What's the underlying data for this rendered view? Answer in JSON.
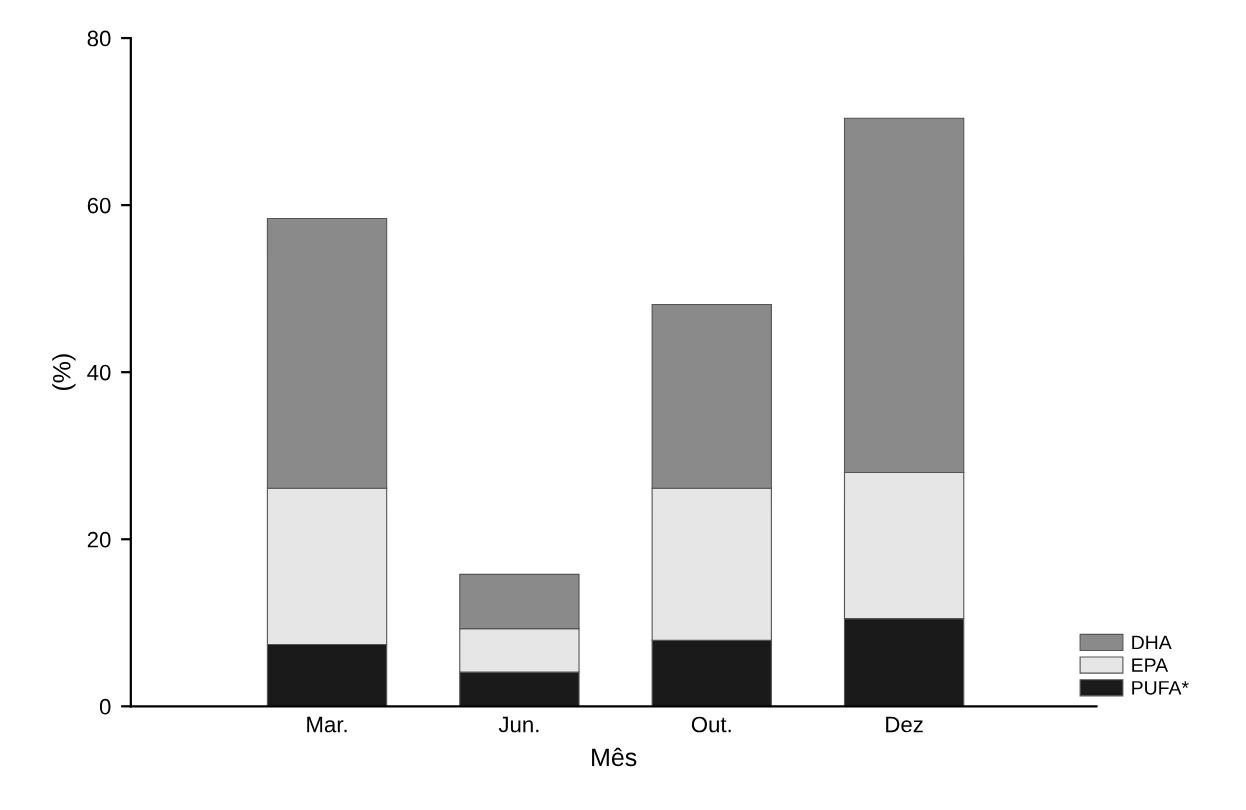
{
  "chart_data": {
    "type": "bar",
    "stacked": true,
    "xlabel": "Mês",
    "ylabel": "(%)",
    "categories": [
      "Mar.",
      "Jun.",
      "Out.",
      "Dez"
    ],
    "series": [
      {
        "name": "PUFA*",
        "color": "#1a1a1a",
        "values": [
          7.4,
          4.1,
          7.9,
          10.5
        ]
      },
      {
        "name": "EPA",
        "color": "#e6e6e6",
        "values": [
          18.7,
          5.2,
          18.2,
          17.5
        ]
      },
      {
        "name": "DHA",
        "color": "#8a8a8a",
        "values": [
          32.3,
          6.5,
          22.0,
          42.4
        ]
      }
    ],
    "ylim": [
      0,
      80
    ],
    "yticks": [
      0,
      20,
      40,
      60,
      80
    ],
    "grid": false,
    "legend": "bottom right"
  }
}
